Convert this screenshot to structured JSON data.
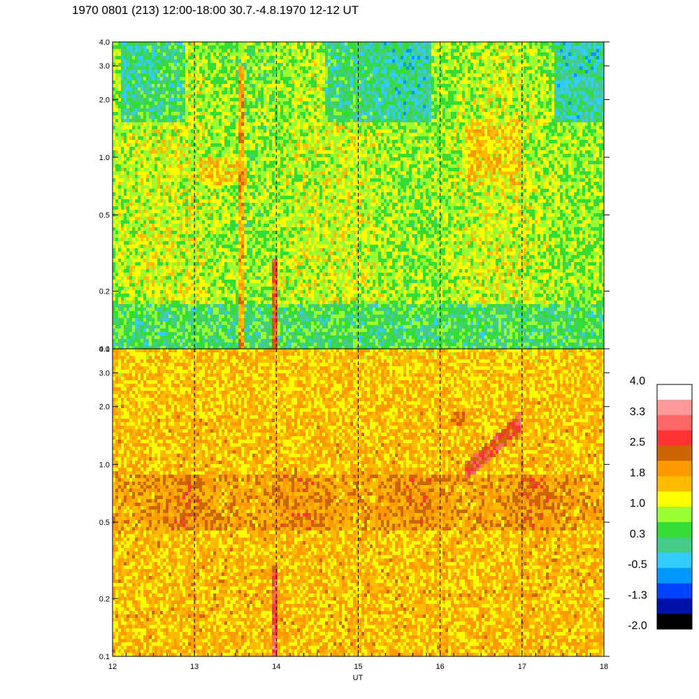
{
  "header": {
    "title": "1970 0801 (213) 12:00-18:00 30.7.-4.8.1970  12-12 UT"
  },
  "chart_data": [
    {
      "type": "heatmap",
      "panel": "top",
      "xlim": [
        12,
        18
      ],
      "ylim": [
        0.1,
        4.0
      ],
      "yscale": "log",
      "x_ticks": [
        12,
        13,
        14,
        15,
        16,
        17,
        18
      ],
      "y_ticks": [
        0.1,
        0.2,
        0.5,
        1.0,
        2.0,
        3.0,
        4.0
      ],
      "y_tick_labels": [
        "0.1",
        "0.2",
        "0.5",
        "1.0",
        "2.0",
        "3.0",
        "4.0"
      ],
      "hour_markers": [
        13,
        14,
        15,
        16,
        17
      ],
      "features": [
        {
          "kind": "vertical-burst",
          "x": 13.57,
          "ymin": 0.1,
          "ymax": 3.0,
          "level": 1.8
        },
        {
          "kind": "vertical-burst",
          "x": 13.98,
          "ymin": 0.1,
          "ymax": 0.3,
          "level": 2.5
        },
        {
          "kind": "patch",
          "x0": 13.05,
          "x1": 13.65,
          "y0": 0.7,
          "y1": 1.0,
          "level": 1.4
        },
        {
          "kind": "patch",
          "x0": 16.3,
          "x1": 17.0,
          "y0": 0.7,
          "y1": 1.6,
          "level": 1.4
        },
        {
          "kind": "patch",
          "x0": 14.2,
          "x1": 14.9,
          "y0": 0.2,
          "y1": 0.4,
          "level": 1.0
        }
      ]
    },
    {
      "type": "heatmap",
      "panel": "bottom",
      "xlim": [
        12,
        18
      ],
      "ylim": [
        0.1,
        4.0
      ],
      "yscale": "log",
      "xlabel": "UT",
      "x_ticks": [
        12,
        13,
        14,
        15,
        16,
        17,
        18
      ],
      "x_tick_labels": [
        "12",
        "13",
        "14",
        "15",
        "16",
        "17",
        "18"
      ],
      "y_ticks": [
        0.1,
        0.2,
        0.5,
        1.0,
        2.0,
        3.0,
        4.0
      ],
      "y_tick_labels": [
        "0.1",
        "0.2",
        "0.5",
        "1.0",
        "2.0",
        "3.0",
        "4.0"
      ],
      "hour_markers": [
        13,
        14,
        15,
        16,
        17
      ],
      "features": [
        {
          "kind": "band",
          "y0": 0.45,
          "y1": 0.9,
          "level": 2.1
        },
        {
          "kind": "vertical-burst",
          "x": 13.98,
          "ymin": 0.1,
          "ymax": 0.3,
          "level": 2.8
        },
        {
          "kind": "arc",
          "x0": 16.3,
          "x1": 17.0,
          "y0": 0.9,
          "y1": 1.7,
          "level": 2.6
        },
        {
          "kind": "patch",
          "x0": 16.15,
          "x1": 16.3,
          "y0": 1.6,
          "y1": 1.9,
          "level": 2.3
        }
      ]
    }
  ],
  "colorbar": {
    "labels": [
      "4.0",
      "3.3",
      "2.5",
      "1.8",
      "1.0",
      "0.3",
      "-0.5",
      "-1.3",
      "-2.0"
    ],
    "range": [
      -2.0,
      4.0
    ],
    "colors": [
      "#ffffff",
      "#ff9999",
      "#ff6666",
      "#ff3333",
      "#cc6600",
      "#ff9900",
      "#ffbb00",
      "#ffff00",
      "#99ff33",
      "#33dd33",
      "#44cc88",
      "#33ccff",
      "#0099ff",
      "#0044ff",
      "#0011aa",
      "#000000"
    ]
  }
}
